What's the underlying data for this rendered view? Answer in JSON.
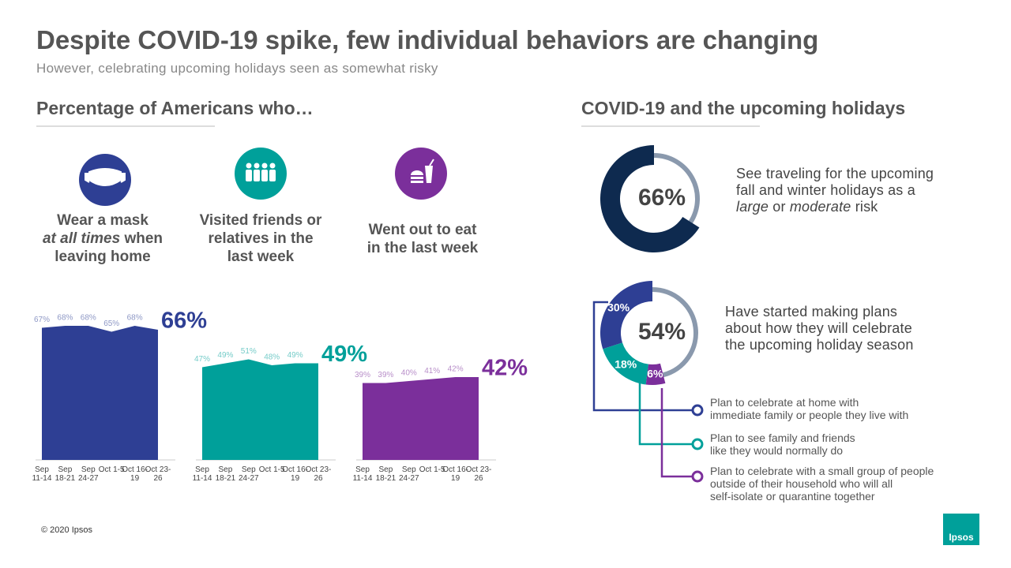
{
  "title": "Despite COVID-19 spike, few individual behaviors are changing",
  "subtitle": "However, celebrating upcoming holidays seen as somewhat risky",
  "left_heading": "Percentage of Americans who…",
  "right_heading": "COVID-19 and the upcoming holidays",
  "copyright": "© 2020 Ipsos",
  "logo": "Ipsos",
  "chart_data": [
    {
      "type": "area",
      "color": "#2e3f94",
      "label": [
        {
          "text": "Wear a mask\n"
        },
        {
          "text": "at all times",
          "italic": true
        },
        {
          "text": " when\nleaving home"
        }
      ],
      "categories": [
        "Sep 11-14",
        "Sep 18-21",
        "Sep 24-27",
        "Oct 1-5",
        "Oct 16-19",
        "Oct 23-26"
      ],
      "values": [
        67,
        68,
        68,
        65,
        68,
        66
      ],
      "value_labels": [
        "67%",
        "68%",
        "68%",
        "65%",
        "68%",
        "66%"
      ]
    },
    {
      "type": "area",
      "color": "#00a09a",
      "label": [
        {
          "text": "Visited friends or\nrelatives in the\nlast week"
        }
      ],
      "categories": [
        "Sep 11-14",
        "Sep 18-21",
        "Sep 24-27",
        "Oct 1-5",
        "Oct 16-19",
        "Oct 23-26"
      ],
      "values": [
        47,
        49,
        51,
        48,
        49,
        49
      ],
      "value_labels": [
        "47%",
        "49%",
        "51%",
        "48%",
        "49%",
        "49%"
      ]
    },
    {
      "type": "area",
      "color": "#7b2f9b",
      "label": [
        {
          "text": "Went out to eat\nin the last week"
        }
      ],
      "categories": [
        "Sep 11-14",
        "Sep 18-21",
        "Sep 24-27",
        "Oct 1-5",
        "Oct 16-19",
        "Oct 23-26"
      ],
      "values": [
        39,
        39,
        40,
        41,
        42,
        42
      ],
      "value_labels": [
        "39%",
        "39%",
        "40%",
        "41%",
        "42%",
        "42%"
      ]
    },
    {
      "type": "donut",
      "color": "#0e2a4f",
      "values": [
        66
      ],
      "value_labels": [
        "66%"
      ],
      "description": [
        {
          "text": "See traveling for the upcoming\nfall and winter holidays as a\n"
        },
        {
          "text": "large",
          "italic": true
        },
        {
          "text": " or "
        },
        {
          "text": "moderate",
          "italic": true
        },
        {
          "text": " risk"
        }
      ]
    },
    {
      "type": "donut",
      "total": 54,
      "total_label": "54%",
      "description": [
        {
          "text": "Have started making plans\nabout how they will celebrate\nthe upcoming holiday season"
        }
      ],
      "categories": [
        "Plan to celebrate at home with\nimmediate family or people they live with",
        "Plan to see family and friends\nlike they would normally do",
        "Plan to celebrate with a small group of people\noutside of their household who will all\nself-isolate or quarantine together"
      ],
      "colors": [
        "#2e3f94",
        "#00a09a",
        "#7b2f9b"
      ],
      "values": [
        30,
        18,
        6
      ],
      "value_labels": [
        "30%",
        "18%",
        "6%"
      ]
    }
  ]
}
